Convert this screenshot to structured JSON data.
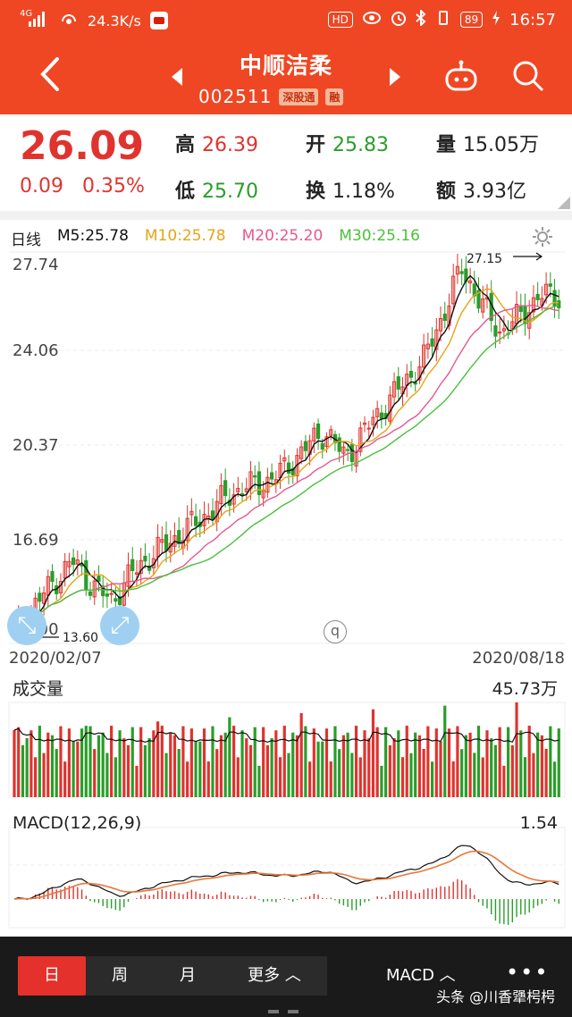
{
  "statusbar": {
    "network": "4G",
    "speed": "24.3K/s",
    "hd": "HD",
    "battery": "89",
    "time": "16:57"
  },
  "header": {
    "stock_name": "中顺洁柔",
    "stock_code": "002511",
    "badge_connect": "深股通",
    "badge_margin": "融"
  },
  "quote": {
    "last_price": "26.09",
    "change": "0.09",
    "change_pct": "0.35%",
    "high_label": "高",
    "high": "26.39",
    "open_label": "开",
    "open": "25.83",
    "volume_label": "量",
    "volume": "15.05万",
    "low_label": "低",
    "low": "25.70",
    "turnover_label": "换",
    "turnover": "1.18%",
    "amount_label": "额",
    "amount": "3.93亿"
  },
  "kline": {
    "period_label": "日线",
    "ma5": "M5:25.78",
    "ma10": "M10:25.78",
    "ma20": "M20:25.20",
    "ma30": "M30:25.16",
    "y_ticks": [
      "27.74",
      "24.06",
      "20.37",
      "16.69",
      "13.00"
    ],
    "max_marker": "27.15",
    "min_marker": "13.60",
    "date_start": "2020/02/07",
    "date_end": "2020/08/18",
    "colors": {
      "up": "#e0332e",
      "down": "#2a9d2a",
      "ma5": "#111111",
      "ma10": "#e8a317",
      "ma20": "#e8578f",
      "ma30": "#4bbf3c"
    }
  },
  "volume": {
    "title": "成交量",
    "max": "45.73万"
  },
  "macd": {
    "title": "MACD(12,26,9)",
    "max": "1.54"
  },
  "bottom": {
    "tab_day": "日",
    "tab_week": "周",
    "tab_month": "月",
    "tab_more": "更多 ︿",
    "macd_switch": "MACD ︿",
    "more_dots": "•••",
    "watermark": "头条 @川香犟枵枵"
  },
  "chart_data": {
    "type": "line",
    "title": "",
    "xlabel": "",
    "ylabel": "",
    "x_range": [
      "2020/02/07",
      "2020/08/18"
    ],
    "ylim": [
      13.0,
      27.74
    ],
    "series": [
      {
        "name": "",
        "values": [
          13.6,
          14.4,
          15.3,
          16.1,
          15.2,
          14.6,
          15.6,
          16.3,
          16.8,
          17.4,
          17.9,
          18.6,
          18.9,
          19.1,
          19.6,
          20.4,
          21.0,
          20.0,
          21.0,
          21.9,
          22.8,
          23.6,
          25.3,
          27.15,
          25.8,
          24.7,
          25.3,
          26.1,
          26.09
        ]
      }
    ]
  }
}
